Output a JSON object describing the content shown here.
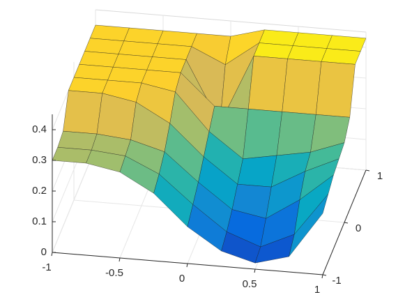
{
  "chart_data": {
    "type": "surface",
    "x": [
      -1,
      -0.75,
      -0.5,
      -0.25,
      0,
      0.25,
      0.5,
      0.75,
      1
    ],
    "y": [
      -1,
      -0.75,
      -0.5,
      -0.25,
      0,
      0.25,
      0.5,
      0.75,
      1
    ],
    "z": [
      [
        0.3,
        0.3,
        0.28,
        0.22,
        0.12,
        0.05,
        0.02,
        0.05,
        0.2
      ],
      [
        0.3,
        0.3,
        0.29,
        0.24,
        0.15,
        0.07,
        0.03,
        0.08,
        0.22
      ],
      [
        0.31,
        0.31,
        0.3,
        0.27,
        0.18,
        0.1,
        0.08,
        0.15,
        0.24
      ],
      [
        0.4,
        0.4,
        0.38,
        0.32,
        0.22,
        0.14,
        0.14,
        0.2,
        0.25
      ],
      [
        0.4,
        0.4,
        0.4,
        0.38,
        0.26,
        0.18,
        0.2,
        0.22,
        0.26
      ],
      [
        0.4,
        0.4,
        0.4,
        0.4,
        0.3,
        0.3,
        0.3,
        0.3,
        0.3
      ],
      [
        0.4,
        0.4,
        0.4,
        0.4,
        0.2,
        0.43,
        0.43,
        0.43,
        0.43
      ],
      [
        0.4,
        0.4,
        0.4,
        0.4,
        0.35,
        0.43,
        0.43,
        0.43,
        0.43
      ],
      [
        0.4,
        0.4,
        0.4,
        0.4,
        0.4,
        0.43,
        0.43,
        0.43,
        0.43
      ]
    ],
    "xlim": [
      -1,
      1
    ],
    "ylim": [
      -1,
      1
    ],
    "zlim": [
      0,
      0.45
    ],
    "xticks": [
      -1,
      -0.5,
      0,
      0.5,
      1
    ],
    "yticks": [
      -1,
      0,
      1
    ],
    "zticks": [
      0,
      0.1,
      0.2,
      0.3,
      0.4
    ],
    "grid": true,
    "colormap": [
      "#352a87",
      "#0363e1",
      "#1485d4",
      "#06a7c6",
      "#38b99e",
      "#92bf73",
      "#d9ba56",
      "#fcce2e",
      "#f9fb0e"
    ]
  }
}
